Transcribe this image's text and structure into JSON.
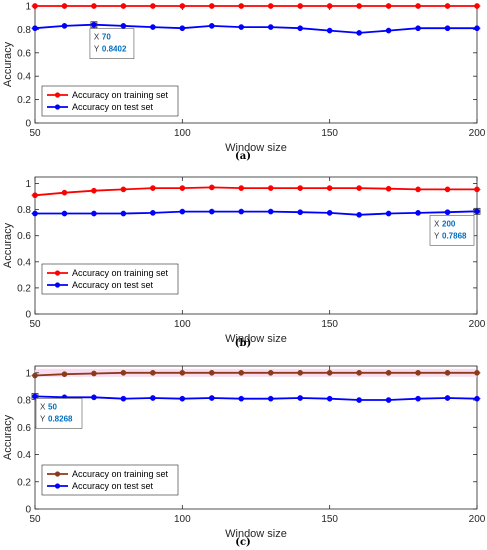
{
  "chart_data": [
    {
      "type": "line",
      "panel_label": "(a)",
      "xlabel": "Window size",
      "ylabel": "Accuracy",
      "xlim": [
        50,
        200
      ],
      "ylim": [
        0,
        1
      ],
      "x_ticks": [
        "50",
        "100",
        "150",
        "200"
      ],
      "y_ticks": [
        "0",
        "0.2",
        "0.4",
        "0.6",
        "0.8",
        "1"
      ],
      "grid": false,
      "legend_position": "bottom-left",
      "x": [
        50,
        60,
        70,
        80,
        90,
        100,
        110,
        120,
        130,
        140,
        150,
        160,
        170,
        180,
        190,
        200
      ],
      "series": [
        {
          "name": "Accuracy on training set",
          "color": "#ff0000",
          "values": [
            1.0,
            1.0,
            1.0,
            1.0,
            1.0,
            1.0,
            1.0,
            1.0,
            1.0,
            1.0,
            1.0,
            1.0,
            1.0,
            1.0,
            1.0,
            1.0
          ]
        },
        {
          "name": "Accuracy on test set",
          "color": "#0000ff",
          "values": [
            0.81,
            0.83,
            0.8402,
            0.83,
            0.82,
            0.81,
            0.83,
            0.82,
            0.82,
            0.81,
            0.79,
            0.77,
            0.79,
            0.81,
            0.81,
            0.81
          ]
        }
      ],
      "datatip": {
        "x_label": "X",
        "x_value": "70",
        "y_label": "Y",
        "y_value": "0.8402",
        "at_x": 70,
        "at_y": 0.8402
      }
    },
    {
      "type": "line",
      "panel_label": "(b)",
      "xlabel": "Window size",
      "ylabel": "Accuracy",
      "xlim": [
        50,
        200
      ],
      "ylim": [
        0,
        1.05
      ],
      "x_ticks": [
        "50",
        "100",
        "150",
        "200"
      ],
      "y_ticks": [
        "0",
        "0.2",
        "0.4",
        "0.6",
        "0.8",
        "1"
      ],
      "grid": false,
      "legend_position": "middle-left",
      "x": [
        50,
        60,
        70,
        80,
        90,
        100,
        110,
        120,
        130,
        140,
        150,
        160,
        170,
        180,
        190,
        200
      ],
      "series": [
        {
          "name": "Accuracy on training set",
          "color": "#ff0000",
          "values": [
            0.91,
            0.93,
            0.945,
            0.955,
            0.965,
            0.965,
            0.97,
            0.965,
            0.965,
            0.965,
            0.965,
            0.965,
            0.96,
            0.955,
            0.955,
            0.955
          ]
        },
        {
          "name": "Accuracy on test set",
          "color": "#0000ff",
          "values": [
            0.77,
            0.77,
            0.77,
            0.77,
            0.775,
            0.785,
            0.785,
            0.785,
            0.785,
            0.78,
            0.775,
            0.76,
            0.77,
            0.775,
            0.78,
            0.7868
          ]
        }
      ],
      "datatip": {
        "x_label": "X",
        "x_value": "200",
        "y_label": "Y",
        "y_value": "0.7868",
        "at_x": 200,
        "at_y": 0.7868
      }
    },
    {
      "type": "line",
      "panel_label": "(c)",
      "xlabel": "Window size",
      "ylabel": "Accuracy",
      "xlim": [
        50,
        200
      ],
      "ylim": [
        0,
        1.05
      ],
      "x_ticks": [
        "50",
        "100",
        "150",
        "200"
      ],
      "y_ticks": [
        "0",
        "0.2",
        "0.4",
        "0.6",
        "0.8",
        "1"
      ],
      "grid": false,
      "legend_position": "middle-left",
      "x": [
        50,
        60,
        70,
        80,
        90,
        100,
        110,
        120,
        130,
        140,
        150,
        160,
        170,
        180,
        190,
        200
      ],
      "series": [
        {
          "name": "Accuracy on training set",
          "color": "#8b3a1a",
          "values": [
            0.98,
            0.99,
            0.995,
            1.0,
            1.0,
            1.0,
            1.0,
            1.0,
            1.0,
            1.0,
            1.0,
            1.0,
            1.0,
            1.0,
            1.0,
            1.0
          ]
        },
        {
          "name": "Accuracy on test set",
          "color": "#0000ff",
          "values": [
            0.8268,
            0.82,
            0.82,
            0.81,
            0.815,
            0.81,
            0.815,
            0.81,
            0.81,
            0.815,
            0.81,
            0.8,
            0.8,
            0.81,
            0.815,
            0.81
          ]
        }
      ],
      "datatip": {
        "x_label": "X",
        "x_value": "50",
        "y_label": "Y",
        "y_value": "0.8268",
        "at_x": 50,
        "at_y": 0.8268
      }
    }
  ]
}
